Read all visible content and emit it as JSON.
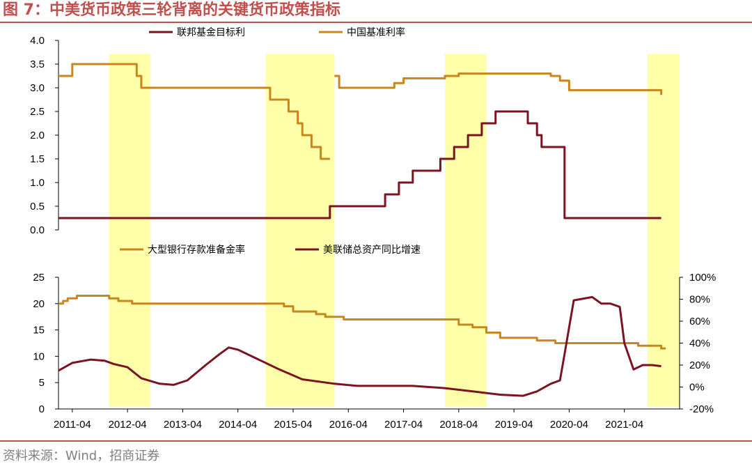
{
  "title": "图 7：中美货币政策三轮背离的关键货币政策指标",
  "source": "资料来源：Wind，招商证券",
  "colors": {
    "accent": "#C0504D",
    "fed": "#7B1420",
    "china": "#C8861C",
    "highlight": "#FFFFAA"
  },
  "chart_data": [
    {
      "type": "line",
      "position": "top",
      "x_type": "date",
      "xlim": [
        "2011-01",
        "2022-04"
      ],
      "ylim": [
        0,
        4
      ],
      "yticks": [
        "0.0",
        "0.5",
        "1.0",
        "1.5",
        "2.0",
        "2.5",
        "3.0",
        "3.5",
        "4.0"
      ],
      "grid": false,
      "highlight_periods": [
        [
          "2011-12",
          "2012-09"
        ],
        [
          "2014-10",
          "2016-01"
        ],
        [
          "2018-01",
          "2018-10"
        ],
        [
          "2021-09",
          "2022-04"
        ]
      ],
      "series": [
        {
          "name": "联邦基金目标利",
          "color": "#7B1420",
          "points": [
            [
              "2011-01",
              0.25
            ],
            [
              "2015-12",
              0.25
            ],
            [
              "2015-12",
              0.5
            ],
            [
              "2016-12",
              0.5
            ],
            [
              "2016-12",
              0.75
            ],
            [
              "2017-03",
              0.75
            ],
            [
              "2017-03",
              1.0
            ],
            [
              "2017-06",
              1.0
            ],
            [
              "2017-06",
              1.25
            ],
            [
              "2017-12",
              1.25
            ],
            [
              "2017-12",
              1.5
            ],
            [
              "2018-03",
              1.5
            ],
            [
              "2018-03",
              1.75
            ],
            [
              "2018-06",
              1.75
            ],
            [
              "2018-06",
              2.0
            ],
            [
              "2018-09",
              2.0
            ],
            [
              "2018-09",
              2.25
            ],
            [
              "2018-12",
              2.25
            ],
            [
              "2018-12",
              2.5
            ],
            [
              "2019-07",
              2.5
            ],
            [
              "2019-07",
              2.25
            ],
            [
              "2019-09",
              2.25
            ],
            [
              "2019-09",
              2.0
            ],
            [
              "2019-10",
              2.0
            ],
            [
              "2019-10",
              1.75
            ],
            [
              "2020-03",
              1.75
            ],
            [
              "2020-03",
              0.25
            ],
            [
              "2021-12",
              0.25
            ]
          ]
        },
        {
          "name": "中国基准利率",
          "color": "#C8861C",
          "segments": [
            [
              [
                "2011-01",
                3.25
              ],
              [
                "2011-04",
                3.25
              ],
              [
                "2011-04",
                3.5
              ],
              [
                "2012-06",
                3.5
              ],
              [
                "2012-06",
                3.25
              ],
              [
                "2012-07",
                3.25
              ],
              [
                "2012-07",
                3.0
              ],
              [
                "2014-11",
                3.0
              ],
              [
                "2014-11",
                2.75
              ],
              [
                "2015-03",
                2.75
              ],
              [
                "2015-03",
                2.5
              ],
              [
                "2015-05",
                2.5
              ],
              [
                "2015-05",
                2.25
              ],
              [
                "2015-06",
                2.25
              ],
              [
                "2015-06",
                2.0
              ],
              [
                "2015-08",
                2.0
              ],
              [
                "2015-08",
                1.75
              ],
              [
                "2015-10",
                1.75
              ],
              [
                "2015-10",
                1.5
              ],
              [
                "2015-12",
                1.5
              ]
            ],
            [
              [
                "2016-01",
                3.25
              ],
              [
                "2016-02",
                3.25
              ],
              [
                "2016-02",
                3.0
              ],
              [
                "2017-02",
                3.0
              ],
              [
                "2017-02",
                3.1
              ],
              [
                "2017-04",
                3.1
              ],
              [
                "2017-04",
                3.2
              ],
              [
                "2018-01",
                3.2
              ],
              [
                "2018-01",
                3.25
              ],
              [
                "2018-04",
                3.25
              ],
              [
                "2018-04",
                3.3
              ],
              [
                "2019-12",
                3.3
              ],
              [
                "2019-12",
                3.25
              ],
              [
                "2020-02",
                3.25
              ],
              [
                "2020-02",
                3.15
              ],
              [
                "2020-04",
                3.15
              ],
              [
                "2020-04",
                2.95
              ],
              [
                "2021-12",
                2.95
              ],
              [
                "2021-12",
                2.85
              ]
            ]
          ]
        }
      ]
    },
    {
      "type": "line",
      "position": "bottom",
      "x_type": "date",
      "xlim": [
        "2011-01",
        "2022-04"
      ],
      "xticks": [
        "2011-04",
        "2012-04",
        "2013-04",
        "2014-04",
        "2015-04",
        "2016-04",
        "2017-04",
        "2018-04",
        "2019-04",
        "2020-04",
        "2021-04"
      ],
      "ylim_left": [
        0,
        25
      ],
      "yticks_left": [
        "0",
        "5",
        "10",
        "15",
        "20",
        "25"
      ],
      "ylim_right": [
        -20,
        100
      ],
      "yticks_right": [
        "-20%",
        "0%",
        "20%",
        "40%",
        "60%",
        "80%",
        "100%"
      ],
      "grid": false,
      "highlight_periods": [
        [
          "2011-12",
          "2012-09"
        ],
        [
          "2014-10",
          "2016-01"
        ],
        [
          "2018-01",
          "2018-10"
        ],
        [
          "2021-09",
          "2022-04"
        ]
      ],
      "series": [
        {
          "name": "大型银行存款准备金率",
          "axis": "left",
          "color": "#C8861C",
          "points": [
            [
              "2011-01",
              20.0
            ],
            [
              "2011-02",
              20.0
            ],
            [
              "2011-02",
              20.5
            ],
            [
              "2011-03",
              20.5
            ],
            [
              "2011-03",
              21.0
            ],
            [
              "2011-05",
              21.0
            ],
            [
              "2011-05",
              21.5
            ],
            [
              "2011-12",
              21.5
            ],
            [
              "2011-12",
              21.0
            ],
            [
              "2012-02",
              21.0
            ],
            [
              "2012-02",
              20.5
            ],
            [
              "2012-05",
              20.5
            ],
            [
              "2012-05",
              20.0
            ],
            [
              "2015-02",
              20.0
            ],
            [
              "2015-02",
              19.5
            ],
            [
              "2015-04",
              19.5
            ],
            [
              "2015-04",
              18.5
            ],
            [
              "2015-09",
              18.5
            ],
            [
              "2015-09",
              18.0
            ],
            [
              "2015-11",
              18.0
            ],
            [
              "2015-11",
              17.5
            ],
            [
              "2016-03",
              17.5
            ],
            [
              "2016-03",
              17.0
            ],
            [
              "2018-04",
              17.0
            ],
            [
              "2018-04",
              16.0
            ],
            [
              "2018-07",
              16.0
            ],
            [
              "2018-07",
              15.5
            ],
            [
              "2018-10",
              15.5
            ],
            [
              "2018-10",
              14.5
            ],
            [
              "2019-01",
              14.5
            ],
            [
              "2019-01",
              13.5
            ],
            [
              "2019-09",
              13.5
            ],
            [
              "2019-09",
              13.0
            ],
            [
              "2020-01",
              13.0
            ],
            [
              "2020-01",
              12.5
            ],
            [
              "2021-07",
              12.5
            ],
            [
              "2021-07",
              12.0
            ],
            [
              "2021-12",
              12.0
            ],
            [
              "2021-12",
              11.5
            ],
            [
              "2022-01",
              11.5
            ]
          ]
        },
        {
          "name": "美联储总资产同比增速",
          "axis": "right",
          "color": "#7B1420",
          "points": [
            [
              "2011-01",
              15
            ],
            [
              "2011-04",
              22
            ],
            [
              "2011-08",
              25
            ],
            [
              "2011-11",
              24
            ],
            [
              "2012-01",
              21
            ],
            [
              "2012-04",
              18
            ],
            [
              "2012-07",
              8
            ],
            [
              "2012-11",
              3
            ],
            [
              "2013-02",
              2
            ],
            [
              "2013-05",
              6
            ],
            [
              "2013-09",
              20
            ],
            [
              "2013-12",
              30
            ],
            [
              "2014-02",
              36
            ],
            [
              "2014-04",
              34
            ],
            [
              "2014-08",
              26
            ],
            [
              "2015-01",
              16
            ],
            [
              "2015-06",
              7
            ],
            [
              "2016-01",
              3
            ],
            [
              "2016-06",
              1
            ],
            [
              "2017-06",
              1
            ],
            [
              "2018-01",
              -1
            ],
            [
              "2018-07",
              -4
            ],
            [
              "2019-01",
              -7
            ],
            [
              "2019-06",
              -8
            ],
            [
              "2019-09",
              -4
            ],
            [
              "2019-12",
              3
            ],
            [
              "2020-02",
              6
            ],
            [
              "2020-03",
              30
            ],
            [
              "2020-05",
              79
            ],
            [
              "2020-09",
              82
            ],
            [
              "2020-11",
              76
            ],
            [
              "2021-01",
              76
            ],
            [
              "2021-03",
              73
            ],
            [
              "2021-04",
              40
            ],
            [
              "2021-06",
              16
            ],
            [
              "2021-08",
              20
            ],
            [
              "2021-10",
              20
            ],
            [
              "2021-12",
              19
            ]
          ]
        }
      ]
    }
  ]
}
